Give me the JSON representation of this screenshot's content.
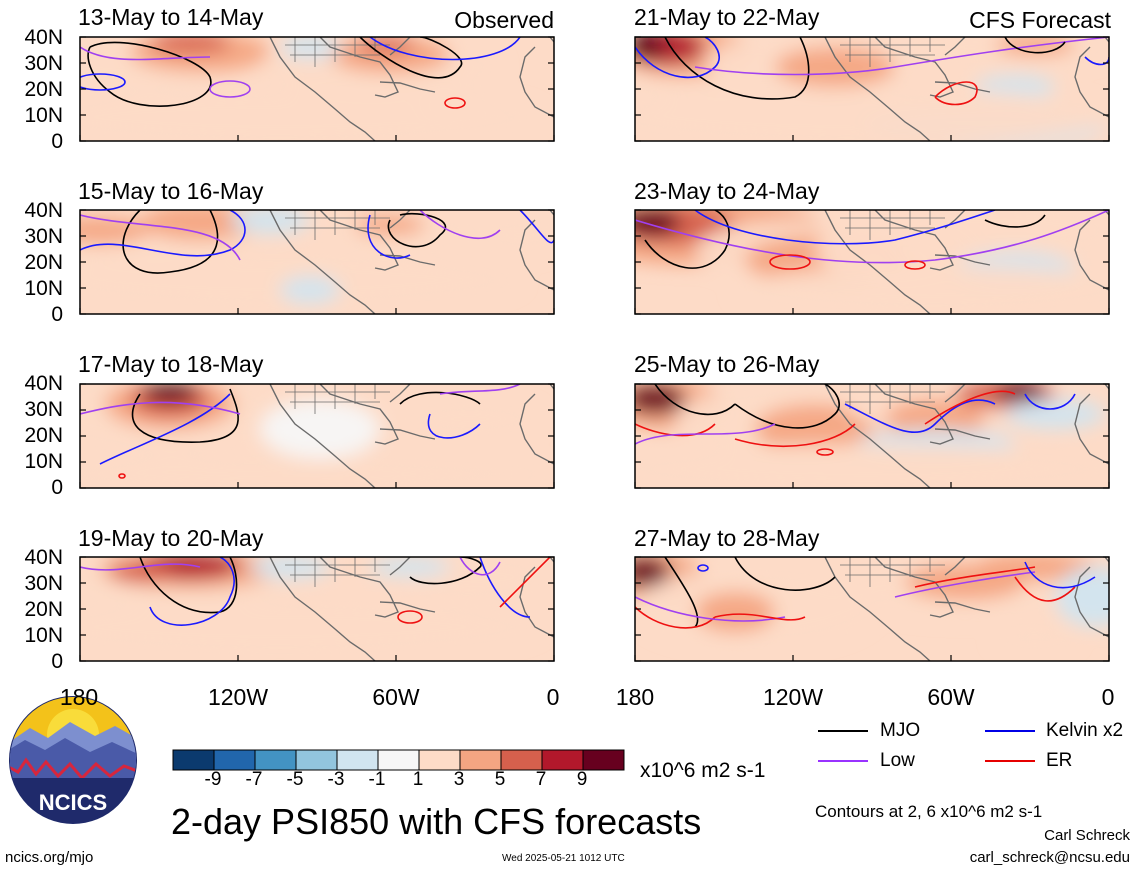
{
  "figure": {
    "title": "2-day PSI850 with CFS forecasts",
    "column_labels": {
      "left": "Observed",
      "right": "CFS Forecast"
    },
    "panels_left": [
      "13-May to 14-May",
      "15-May to 16-May",
      "17-May to 18-May",
      "19-May to 20-May"
    ],
    "panels_right": [
      "21-May to 22-May",
      "23-May to 24-May",
      "25-May to 26-May",
      "27-May to 28-May"
    ],
    "lat_ticks": [
      "40N",
      "30N",
      "20N",
      "10N",
      "0"
    ],
    "lon_ticks": [
      "180",
      "120W",
      "60W",
      "0"
    ],
    "colorbar": {
      "labels": [
        "-9",
        "-7",
        "-5",
        "-3",
        "-1",
        "1",
        "3",
        "5",
        "7",
        "9"
      ],
      "units": "x10^6 m2 s-1",
      "colors": [
        "#0b3a6e",
        "#2166ac",
        "#4393c3",
        "#92c5de",
        "#d1e5f0",
        "#f7f7f7",
        "#fddbc7",
        "#f4a582",
        "#d6604d",
        "#b2182b",
        "#67001f"
      ]
    },
    "legend": [
      {
        "label": "MJO",
        "color": "#000000"
      },
      {
        "label": "Kelvin x2",
        "color": "#0000e6"
      },
      {
        "label": "Low",
        "color": "#9933ff"
      },
      {
        "label": "ER",
        "color": "#e60000"
      }
    ],
    "contour_note": "Contours at 2, 6 x10^6 m2 s-1",
    "author": "Carl Schreck",
    "email": "carl_schreck@ncsu.edu",
    "website": "ncics.org/mjo",
    "timestamp": "Wed 2025-05-21 1012 UTC",
    "logo_text": "NCICS"
  }
}
